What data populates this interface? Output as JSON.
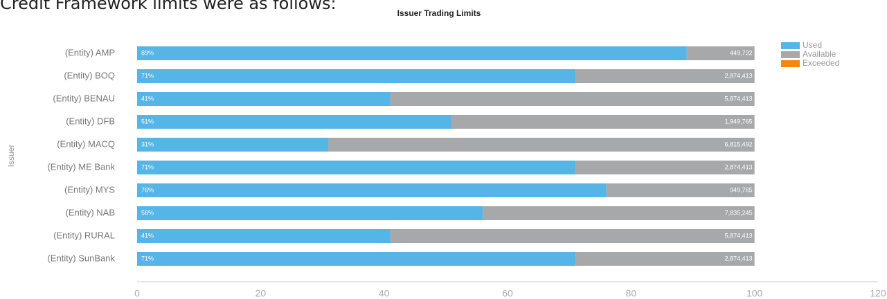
{
  "heading": "Credit Framework limits were as follows:",
  "chart_data": {
    "type": "stacked-barh",
    "title": "Issuer Trading Limits",
    "ylabel": "Issuer",
    "categories": [
      "(Entity) AMP",
      "(Entity) BOQ",
      "(Entity) BENAU",
      "(Entity) DFB",
      "(Entity) MACQ",
      "(Entity) ME Bank",
      "(Entity) MYS",
      "(Entity) NAB",
      "(Entity) RURAL",
      "(Entity) SunBank"
    ],
    "series": [
      {
        "name": "Used",
        "color": "#55b5e6",
        "values": [
          89,
          71,
          41,
          51,
          31,
          71,
          76,
          56,
          41,
          71
        ],
        "value_labels": [
          "89%",
          "71%",
          "41%",
          "51%",
          "31%",
          "71%",
          "76%",
          "56%",
          "41%",
          "71%"
        ]
      },
      {
        "name": "Available",
        "color": "#a7a8aa",
        "values": [
          11,
          29,
          59,
          49,
          69,
          29,
          24,
          44,
          59,
          29
        ],
        "amounts": [
          "449,732",
          "2,874,413",
          "5,874,413",
          "1,949,765",
          "6,815,492",
          "2,874,413",
          "949,765",
          "7,835,245",
          "5,874,413",
          "2,874,413"
        ]
      },
      {
        "name": "Exceeded",
        "color": "#f5860f",
        "values": [
          0,
          0,
          0,
          0,
          0,
          0,
          0,
          0,
          0,
          0
        ]
      }
    ],
    "xlim": [
      0,
      120
    ],
    "xticks": [
      0,
      20,
      40,
      60,
      80,
      100,
      120
    ],
    "legend": "top-right"
  }
}
